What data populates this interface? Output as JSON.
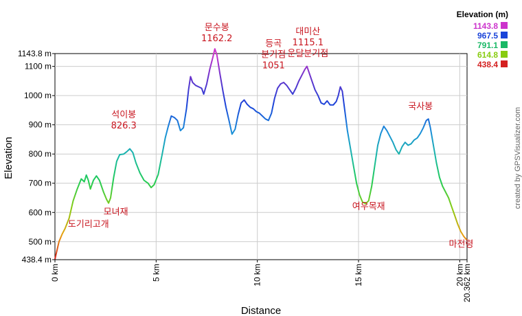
{
  "chart_data": {
    "type": "line",
    "xlabel": "Distance",
    "ylabel": "Elevation",
    "xlim": [
      0,
      20.362
    ],
    "ylim": [
      438.4,
      1143.8
    ],
    "x_ticks": [
      {
        "value": 0,
        "label": "0 km"
      },
      {
        "value": 5,
        "label": "5 km"
      },
      {
        "value": 10,
        "label": "10 km"
      },
      {
        "value": 15,
        "label": "15 km"
      },
      {
        "value": 20,
        "label": "20 km"
      },
      {
        "value": 20.362,
        "label": "20.362 km"
      }
    ],
    "y_ticks": [
      {
        "value": 438.4,
        "label": "438.4 m"
      },
      {
        "value": 500,
        "label": "500 m"
      },
      {
        "value": 600,
        "label": "600 m"
      },
      {
        "value": 700,
        "label": "700 m"
      },
      {
        "value": 800,
        "label": "800 m"
      },
      {
        "value": 900,
        "label": "900 m"
      },
      {
        "value": 1000,
        "label": "1000 m"
      },
      {
        "value": 1100,
        "label": "1100 m"
      },
      {
        "value": 1143.8,
        "label": "1143.8 m"
      }
    ],
    "grid": true,
    "profile": [
      [
        0.0,
        440
      ],
      [
        0.1,
        470
      ],
      [
        0.2,
        500
      ],
      [
        0.35,
        525
      ],
      [
        0.5,
        545
      ],
      [
        0.7,
        580
      ],
      [
        0.9,
        640
      ],
      [
        1.1,
        680
      ],
      [
        1.3,
        715
      ],
      [
        1.45,
        705
      ],
      [
        1.55,
        728
      ],
      [
        1.65,
        710
      ],
      [
        1.75,
        680
      ],
      [
        1.9,
        710
      ],
      [
        2.05,
        725
      ],
      [
        2.2,
        710
      ],
      [
        2.4,
        670
      ],
      [
        2.55,
        645
      ],
      [
        2.65,
        632
      ],
      [
        2.75,
        650
      ],
      [
        2.9,
        720
      ],
      [
        3.05,
        775
      ],
      [
        3.2,
        798
      ],
      [
        3.4,
        800
      ],
      [
        3.55,
        808
      ],
      [
        3.7,
        818
      ],
      [
        3.85,
        805
      ],
      [
        4.0,
        770
      ],
      [
        4.2,
        735
      ],
      [
        4.4,
        710
      ],
      [
        4.6,
        700
      ],
      [
        4.75,
        685
      ],
      [
        4.9,
        695
      ],
      [
        5.1,
        730
      ],
      [
        5.3,
        800
      ],
      [
        5.45,
        855
      ],
      [
        5.6,
        895
      ],
      [
        5.75,
        930
      ],
      [
        5.9,
        925
      ],
      [
        6.05,
        915
      ],
      [
        6.2,
        880
      ],
      [
        6.35,
        890
      ],
      [
        6.5,
        955
      ],
      [
        6.6,
        1020
      ],
      [
        6.7,
        1065
      ],
      [
        6.8,
        1045
      ],
      [
        6.95,
        1035
      ],
      [
        7.1,
        1030
      ],
      [
        7.25,
        1025
      ],
      [
        7.35,
        1005
      ],
      [
        7.5,
        1040
      ],
      [
        7.65,
        1090
      ],
      [
        7.8,
        1130
      ],
      [
        7.9,
        1160
      ],
      [
        8.0,
        1140
      ],
      [
        8.15,
        1075
      ],
      [
        8.3,
        1015
      ],
      [
        8.45,
        960
      ],
      [
        8.6,
        915
      ],
      [
        8.75,
        868
      ],
      [
        8.9,
        885
      ],
      [
        9.05,
        935
      ],
      [
        9.2,
        975
      ],
      [
        9.35,
        985
      ],
      [
        9.5,
        970
      ],
      [
        9.65,
        960
      ],
      [
        9.8,
        955
      ],
      [
        9.95,
        945
      ],
      [
        10.1,
        940
      ],
      [
        10.25,
        930
      ],
      [
        10.4,
        920
      ],
      [
        10.55,
        915
      ],
      [
        10.7,
        940
      ],
      [
        10.85,
        990
      ],
      [
        11.0,
        1025
      ],
      [
        11.15,
        1040
      ],
      [
        11.3,
        1045
      ],
      [
        11.45,
        1035
      ],
      [
        11.6,
        1020
      ],
      [
        11.75,
        1005
      ],
      [
        11.9,
        1025
      ],
      [
        12.05,
        1050
      ],
      [
        12.2,
        1070
      ],
      [
        12.35,
        1090
      ],
      [
        12.45,
        1100
      ],
      [
        12.55,
        1080
      ],
      [
        12.7,
        1050
      ],
      [
        12.85,
        1020
      ],
      [
        13.0,
        1000
      ],
      [
        13.15,
        975
      ],
      [
        13.3,
        970
      ],
      [
        13.45,
        982
      ],
      [
        13.6,
        968
      ],
      [
        13.75,
        968
      ],
      [
        13.9,
        980
      ],
      [
        14.0,
        1000
      ],
      [
        14.1,
        1030
      ],
      [
        14.2,
        1015
      ],
      [
        14.3,
        960
      ],
      [
        14.45,
        880
      ],
      [
        14.6,
        820
      ],
      [
        14.75,
        760
      ],
      [
        14.9,
        700
      ],
      [
        15.05,
        660
      ],
      [
        15.2,
        635
      ],
      [
        15.35,
        630
      ],
      [
        15.5,
        640
      ],
      [
        15.65,
        690
      ],
      [
        15.8,
        760
      ],
      [
        15.95,
        830
      ],
      [
        16.1,
        870
      ],
      [
        16.25,
        895
      ],
      [
        16.4,
        880
      ],
      [
        16.55,
        860
      ],
      [
        16.7,
        840
      ],
      [
        16.85,
        815
      ],
      [
        17.0,
        800
      ],
      [
        17.15,
        825
      ],
      [
        17.3,
        840
      ],
      [
        17.45,
        830
      ],
      [
        17.6,
        835
      ],
      [
        17.75,
        848
      ],
      [
        17.9,
        855
      ],
      [
        18.05,
        870
      ],
      [
        18.2,
        890
      ],
      [
        18.35,
        915
      ],
      [
        18.45,
        920
      ],
      [
        18.55,
        890
      ],
      [
        18.7,
        830
      ],
      [
        18.85,
        770
      ],
      [
        19.0,
        720
      ],
      [
        19.15,
        690
      ],
      [
        19.3,
        670
      ],
      [
        19.45,
        650
      ],
      [
        19.6,
        620
      ],
      [
        19.75,
        590
      ],
      [
        19.9,
        560
      ],
      [
        20.05,
        535
      ],
      [
        20.2,
        518
      ],
      [
        20.362,
        505
      ]
    ],
    "annotations": [
      {
        "x": 0.3,
        "y": 545,
        "lines": [
          "도기리고개"
        ]
      },
      {
        "x": 2.6,
        "y": 640,
        "lines": [
          "모녀재"
        ]
      },
      {
        "x": 3.4,
        "y": 826.3,
        "lines": [
          "석이봉",
          "826.3"
        ]
      },
      {
        "x": 8.0,
        "y": 1162.2,
        "lines": [
          "문수봉",
          "1162.2"
        ]
      },
      {
        "x": 10.8,
        "y": 1051,
        "lines": [
          "등곡",
          "분기점",
          "1051"
        ]
      },
      {
        "x": 12.5,
        "y": 1115.1,
        "lines": [
          "대미산",
          "1115.1",
          "운달분기점"
        ]
      },
      {
        "x": 15.5,
        "y": 640,
        "lines": [
          "여우목재"
        ]
      },
      {
        "x": 18.4,
        "y": 920,
        "lines": [
          "국사봉"
        ]
      },
      {
        "x": 19.8,
        "y": 510,
        "lines": [
          "마전령"
        ]
      }
    ],
    "legend": {
      "title": "Elevation (m)",
      "placement": "top-right",
      "entries": [
        {
          "label": "1143.8",
          "color": "#cc33cc"
        },
        {
          "label": "967.5",
          "color": "#1a44d9"
        },
        {
          "label": "791.1",
          "color": "#1ab866"
        },
        {
          "label": "614.8",
          "color": "#88cc11"
        },
        {
          "label": "438.4",
          "color": "#d42020"
        }
      ]
    }
  },
  "credit": "created by GPSVisualizer.com"
}
